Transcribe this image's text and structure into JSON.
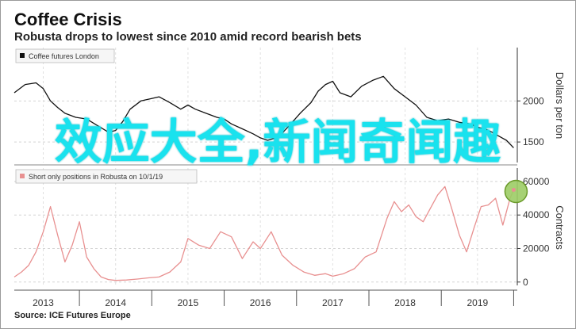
{
  "title": "Coffee Crisis",
  "subtitle": "Robusta drops to lowest since 2010 amid record bearish bets",
  "source": "Source: ICE Futures Europe",
  "overlay_text": "效应大全,新闻奇闻趣",
  "colors": {
    "price_line": "#111111",
    "positions_line": "#e89090",
    "highlight_fill": "#9ccc65",
    "highlight_stroke": "#6a9a2a",
    "overlay": "#19e2ee"
  },
  "chart_data": [
    {
      "type": "line",
      "legend": "Coffee futures London",
      "ylabel": "Dollars per ton",
      "ylim": [
        1250,
        2650
      ],
      "yticks": [
        "1500",
        "2000"
      ],
      "x_range": [
        2012.6,
        2019.55
      ],
      "series": [
        {
          "name": "Coffee futures London",
          "x": [
            2012.6,
            2012.75,
            2012.9,
            2013.0,
            2013.1,
            2013.2,
            2013.3,
            2013.45,
            2013.6,
            2013.75,
            2013.9,
            2014.0,
            2014.1,
            2014.2,
            2014.35,
            2014.5,
            2014.6,
            2014.75,
            2014.9,
            2015.0,
            2015.1,
            2015.25,
            2015.4,
            2015.5,
            2015.6,
            2015.75,
            2015.9,
            2016.0,
            2016.1,
            2016.25,
            2016.4,
            2016.55,
            2016.7,
            2016.8,
            2016.9,
            2017.0,
            2017.1,
            2017.25,
            2017.4,
            2017.55,
            2017.7,
            2017.85,
            2018.0,
            2018.15,
            2018.3,
            2018.45,
            2018.6,
            2018.75,
            2018.9,
            2019.0,
            2019.1,
            2019.2,
            2019.3,
            2019.4,
            2019.5
          ],
          "y": [
            2100,
            2200,
            2220,
            2150,
            2000,
            1920,
            1850,
            1800,
            1780,
            1700,
            1620,
            1640,
            1750,
            1900,
            2000,
            2030,
            2050,
            1980,
            1900,
            1950,
            1900,
            1850,
            1800,
            1780,
            1720,
            1660,
            1600,
            1550,
            1520,
            1560,
            1700,
            1850,
            1980,
            2120,
            2200,
            2240,
            2100,
            2050,
            2180,
            2250,
            2300,
            2150,
            2050,
            1950,
            1800,
            1760,
            1780,
            1740,
            1720,
            1680,
            1660,
            1620,
            1570,
            1520,
            1430
          ]
        }
      ]
    },
    {
      "type": "line",
      "legend": "Short only positions in Robusta on 10/1/19",
      "ylabel": "Contracts",
      "ylim": [
        -2000,
        68000
      ],
      "yticks": [
        "0",
        "20000",
        "40000",
        "60000"
      ],
      "xticks": [
        "2013",
        "2014",
        "2015",
        "2016",
        "2017",
        "2018",
        "2019"
      ],
      "x_range": [
        2012.6,
        2019.55
      ],
      "series": [
        {
          "name": "Short only positions in Robusta on 10/1/19",
          "x": [
            2012.6,
            2012.7,
            2012.8,
            2012.9,
            2013.0,
            2013.1,
            2013.2,
            2013.3,
            2013.4,
            2013.5,
            2013.6,
            2013.7,
            2013.8,
            2013.9,
            2014.0,
            2014.15,
            2014.3,
            2014.45,
            2014.6,
            2014.75,
            2014.9,
            2015.0,
            2015.15,
            2015.3,
            2015.45,
            2015.6,
            2015.75,
            2015.9,
            2016.0,
            2016.15,
            2016.3,
            2016.45,
            2016.6,
            2016.75,
            2016.9,
            2017.0,
            2017.15,
            2017.3,
            2017.45,
            2017.6,
            2017.75,
            2017.85,
            2017.95,
            2018.05,
            2018.15,
            2018.25,
            2018.35,
            2018.45,
            2018.55,
            2018.65,
            2018.75,
            2018.85,
            2018.95,
            2019.05,
            2019.15,
            2019.25,
            2019.35,
            2019.45,
            2019.5
          ],
          "y": [
            3000,
            6000,
            10000,
            18000,
            30000,
            45000,
            28000,
            12000,
            22000,
            36000,
            15000,
            8000,
            3000,
            1500,
            1000,
            1200,
            1800,
            2500,
            3000,
            6000,
            12000,
            26000,
            22000,
            20000,
            30000,
            27000,
            14000,
            24000,
            20000,
            30000,
            16000,
            10000,
            6000,
            4000,
            5000,
            3500,
            5000,
            8000,
            15000,
            18000,
            38000,
            48000,
            42000,
            46000,
            39000,
            36000,
            44000,
            52000,
            57000,
            43000,
            28000,
            18000,
            32000,
            45000,
            46000,
            50000,
            34000,
            50000,
            55000
          ]
        }
      ]
    }
  ]
}
